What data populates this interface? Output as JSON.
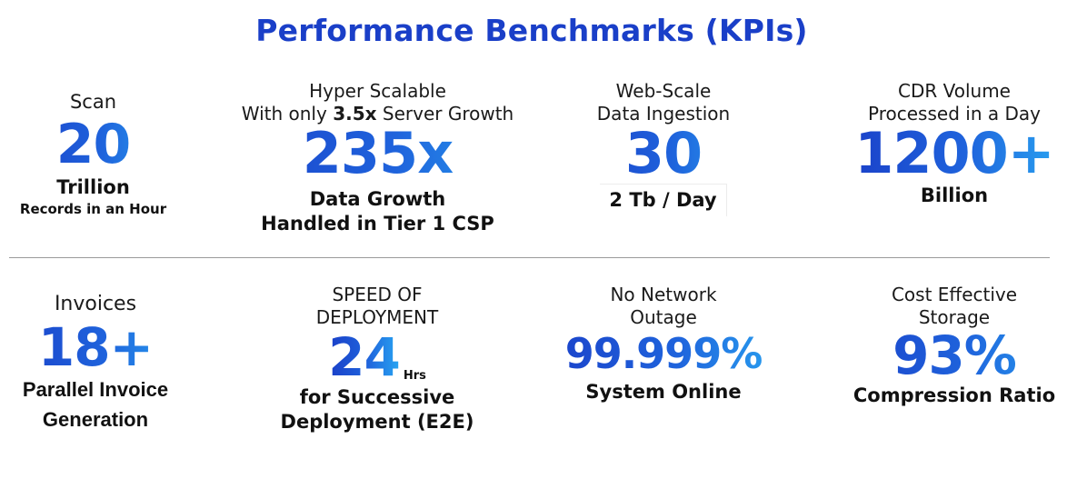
{
  "title": "Performance Benchmarks (KPIs)",
  "row1": [
    {
      "label": "Scan",
      "value": "20",
      "desc1": "Trillion",
      "desc2": "Records in an Hour"
    },
    {
      "label1": "Hyper Scalable",
      "label2_pre": "With only ",
      "label2_bold": "3.5x",
      "label2_post": " Server Growth",
      "value": "235x",
      "desc1": "Data Growth",
      "desc2": "Handled in Tier 1 CSP"
    },
    {
      "label1": "Web-Scale",
      "label2": "Data Ingestion",
      "value": "30",
      "desc1": "2 Tb / Day"
    },
    {
      "label1": "CDR Volume",
      "label2": "Processed in a Day",
      "value": "1200+",
      "desc1": "Billion"
    }
  ],
  "row2": [
    {
      "label": "Invoices",
      "value": "18+",
      "desc1": "Parallel Invoice",
      "desc2": "Generation"
    },
    {
      "label1": "SPEED OF",
      "label2": "DEPLOYMENT",
      "value": "24",
      "unit": "Hrs",
      "desc1": "for Successive",
      "desc2": "Deployment (E2E)"
    },
    {
      "label1": "No Network",
      "label2": "Outage",
      "value": "99.999%",
      "desc1": "System Online"
    },
    {
      "label1": "Cost Effective",
      "label2": "Storage",
      "value": "93%",
      "desc1": "Compression Ratio"
    }
  ],
  "colors": {
    "title": "#1a3fc8",
    "gradient_start": "#1a3fc8",
    "gradient_end": "#29a6f2"
  }
}
